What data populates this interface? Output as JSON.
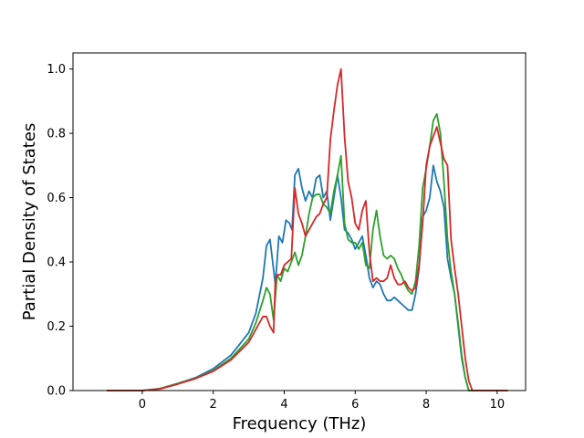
{
  "chart_data": {
    "type": "line",
    "title": "",
    "xlabel": "Frequency (THz)",
    "ylabel": "Partial Density of States",
    "xlim": [
      -1.95,
      10.8
    ],
    "ylim": [
      0,
      1.05
    ],
    "xticks": [
      0,
      2,
      4,
      6,
      8,
      10
    ],
    "yticks": [
      0.0,
      0.2,
      0.4,
      0.6,
      0.8,
      1.0
    ],
    "xtick_labels": [
      "0",
      "2",
      "4",
      "6",
      "8",
      "10"
    ],
    "ytick_labels": [
      "0.0",
      "0.2",
      "0.4",
      "0.6",
      "0.8",
      "1.0"
    ],
    "grid": false,
    "legend": "none",
    "series": [
      {
        "color": "#1f77b4",
        "x": [
          -1.0,
          0.0,
          0.5,
          1.0,
          1.5,
          2.0,
          2.5,
          3.0,
          3.2,
          3.4,
          3.5,
          3.6,
          3.75,
          3.85,
          3.95,
          4.05,
          4.15,
          4.22,
          4.3,
          4.4,
          4.5,
          4.6,
          4.7,
          4.8,
          4.9,
          5.0,
          5.1,
          5.2,
          5.3,
          5.4,
          5.5,
          5.6,
          5.7,
          5.8,
          5.9,
          6.0,
          6.1,
          6.2,
          6.3,
          6.4,
          6.5,
          6.6,
          6.7,
          6.8,
          6.9,
          7.0,
          7.1,
          7.2,
          7.3,
          7.4,
          7.5,
          7.6,
          7.7,
          7.8,
          7.9,
          8.0,
          8.1,
          8.2,
          8.3,
          8.4,
          8.5,
          8.6,
          8.7,
          8.8,
          8.9,
          9.0,
          9.1,
          9.2,
          9.3,
          9.4,
          10.3
        ],
        "y": [
          0.0,
          0.0,
          0.006,
          0.022,
          0.04,
          0.068,
          0.11,
          0.18,
          0.24,
          0.35,
          0.45,
          0.47,
          0.33,
          0.48,
          0.46,
          0.53,
          0.52,
          0.5,
          0.67,
          0.69,
          0.63,
          0.59,
          0.62,
          0.6,
          0.66,
          0.67,
          0.6,
          0.62,
          0.53,
          0.6,
          0.67,
          0.6,
          0.5,
          0.49,
          0.47,
          0.44,
          0.46,
          0.48,
          0.42,
          0.35,
          0.32,
          0.34,
          0.33,
          0.3,
          0.28,
          0.28,
          0.29,
          0.28,
          0.27,
          0.26,
          0.25,
          0.25,
          0.3,
          0.38,
          0.54,
          0.56,
          0.6,
          0.7,
          0.65,
          0.62,
          0.57,
          0.41,
          0.35,
          0.3,
          0.2,
          0.1,
          0.04,
          0.0,
          0.0,
          0.0,
          0.0
        ]
      },
      {
        "color": "#2ca02c",
        "x": [
          -1.0,
          0.0,
          0.5,
          1.0,
          1.5,
          2.0,
          2.5,
          3.0,
          3.2,
          3.4,
          3.5,
          3.6,
          3.7,
          3.8,
          3.9,
          4.0,
          4.1,
          4.2,
          4.3,
          4.4,
          4.5,
          4.6,
          4.7,
          4.8,
          4.9,
          5.0,
          5.1,
          5.2,
          5.3,
          5.4,
          5.5,
          5.6,
          5.7,
          5.8,
          5.9,
          6.0,
          6.1,
          6.2,
          6.3,
          6.4,
          6.5,
          6.6,
          6.7,
          6.8,
          6.9,
          7.0,
          7.1,
          7.2,
          7.3,
          7.4,
          7.5,
          7.6,
          7.7,
          7.8,
          7.9,
          8.0,
          8.1,
          8.2,
          8.3,
          8.4,
          8.5,
          8.6,
          8.7,
          8.8,
          8.9,
          9.0,
          9.1,
          9.2,
          9.3,
          9.4,
          10.3
        ],
        "y": [
          0.0,
          0.0,
          0.006,
          0.022,
          0.038,
          0.062,
          0.1,
          0.16,
          0.21,
          0.28,
          0.32,
          0.3,
          0.22,
          0.36,
          0.34,
          0.38,
          0.37,
          0.4,
          0.43,
          0.39,
          0.42,
          0.48,
          0.55,
          0.6,
          0.61,
          0.61,
          0.58,
          0.57,
          0.55,
          0.62,
          0.67,
          0.73,
          0.52,
          0.47,
          0.46,
          0.46,
          0.44,
          0.46,
          0.39,
          0.38,
          0.5,
          0.56,
          0.48,
          0.42,
          0.41,
          0.42,
          0.41,
          0.38,
          0.36,
          0.33,
          0.31,
          0.3,
          0.34,
          0.45,
          0.63,
          0.69,
          0.76,
          0.84,
          0.86,
          0.8,
          0.65,
          0.47,
          0.37,
          0.3,
          0.21,
          0.11,
          0.04,
          0.0,
          0.0,
          0.0,
          0.0
        ]
      },
      {
        "color": "#d62728",
        "x": [
          -1.0,
          0.0,
          0.5,
          1.0,
          1.5,
          2.0,
          2.5,
          3.0,
          3.2,
          3.3,
          3.4,
          3.5,
          3.6,
          3.7,
          3.75,
          3.8,
          3.9,
          4.0,
          4.1,
          4.2,
          4.3,
          4.4,
          4.5,
          4.6,
          4.7,
          4.8,
          4.9,
          5.0,
          5.1,
          5.2,
          5.3,
          5.4,
          5.5,
          5.6,
          5.7,
          5.8,
          5.9,
          6.0,
          6.1,
          6.2,
          6.3,
          6.4,
          6.5,
          6.6,
          6.7,
          6.8,
          6.9,
          7.0,
          7.1,
          7.2,
          7.3,
          7.4,
          7.5,
          7.6,
          7.7,
          7.8,
          7.9,
          8.0,
          8.1,
          8.2,
          8.3,
          8.4,
          8.5,
          8.6,
          8.7,
          8.8,
          8.9,
          9.0,
          9.1,
          9.2,
          9.3,
          9.4,
          10.3
        ],
        "y": [
          0.0,
          0.0,
          0.005,
          0.02,
          0.037,
          0.06,
          0.095,
          0.15,
          0.19,
          0.21,
          0.23,
          0.23,
          0.2,
          0.18,
          0.34,
          0.36,
          0.36,
          0.39,
          0.4,
          0.41,
          0.63,
          0.55,
          0.52,
          0.48,
          0.5,
          0.52,
          0.54,
          0.55,
          0.58,
          0.6,
          0.78,
          0.87,
          0.95,
          1.0,
          0.79,
          0.65,
          0.6,
          0.52,
          0.5,
          0.56,
          0.59,
          0.43,
          0.34,
          0.35,
          0.34,
          0.34,
          0.35,
          0.39,
          0.35,
          0.33,
          0.33,
          0.34,
          0.32,
          0.31,
          0.32,
          0.39,
          0.52,
          0.7,
          0.76,
          0.79,
          0.82,
          0.77,
          0.72,
          0.7,
          0.47,
          0.38,
          0.3,
          0.2,
          0.1,
          0.03,
          0.0,
          0.0,
          0.0
        ]
      }
    ]
  }
}
